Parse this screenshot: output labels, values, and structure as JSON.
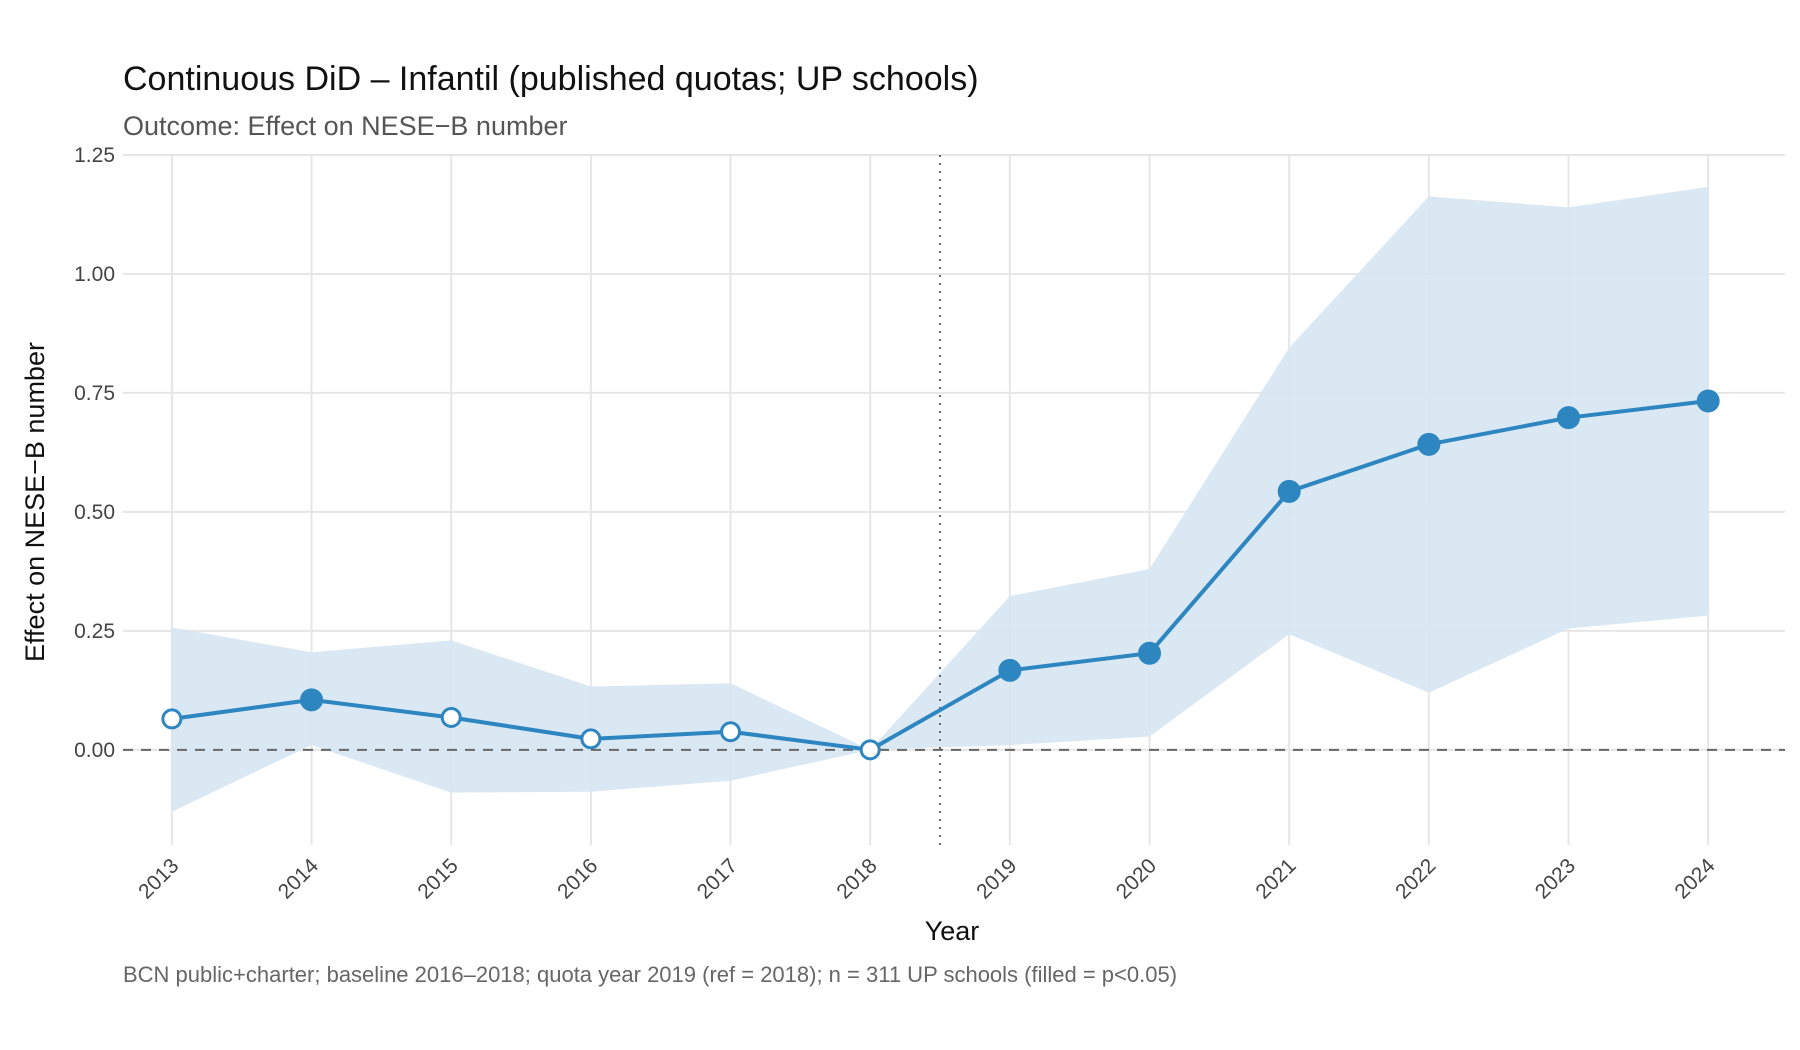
{
  "chart_data": {
    "type": "line",
    "title": "Continuous DiD – Infantil (published quotas; UP schools)",
    "subtitle": "Outcome: Effect on NESE−B number",
    "xlabel": "Year",
    "ylabel": "Effect on NESE−B number",
    "caption": "BCN public+charter; baseline 2016–2018; quota year 2019 (ref = 2018); n = 311 UP schools  (filled = p<0.05)",
    "x": [
      2013,
      2014,
      2015,
      2016,
      2017,
      2018,
      2019,
      2020,
      2021,
      2022,
      2023,
      2024
    ],
    "x_tick_labels": [
      "2013",
      "2014",
      "2015",
      "2016",
      "2017",
      "2018",
      "2019",
      "2020",
      "2021",
      "2022",
      "2023",
      "2024"
    ],
    "y_ticks": [
      0.0,
      0.25,
      0.5,
      0.75,
      1.0,
      1.25
    ],
    "y_tick_labels": [
      "0.00",
      "0.25",
      "0.50",
      "0.75",
      "1.00",
      "1.25"
    ],
    "ylim": [
      -0.2,
      1.25
    ],
    "xlim": [
      2012.65,
      2024.55
    ],
    "series": [
      {
        "estimate": [
          0.065,
          0.105,
          0.068,
          0.023,
          0.038,
          0.0,
          0.167,
          0.203,
          0.543,
          0.642,
          0.698,
          0.733
        ],
        "ci_lower": [
          -0.13,
          0.01,
          -0.09,
          -0.088,
          -0.065,
          0.0,
          0.01,
          0.028,
          0.243,
          0.12,
          0.255,
          0.282
        ],
        "ci_upper": [
          0.257,
          0.205,
          0.23,
          0.133,
          0.14,
          0.0,
          0.323,
          0.38,
          0.845,
          1.163,
          1.14,
          1.183
        ],
        "significant": [
          false,
          true,
          false,
          false,
          false,
          false,
          true,
          true,
          true,
          true,
          true,
          true
        ]
      }
    ],
    "reference_hline": 0,
    "reference_vline": 2018.5,
    "colors": {
      "line": "#2e86c1",
      "ribbon": "#d6e6f3",
      "reference": "#666666",
      "grid": "#e6e6e6"
    },
    "grid": true,
    "legend": "none"
  }
}
